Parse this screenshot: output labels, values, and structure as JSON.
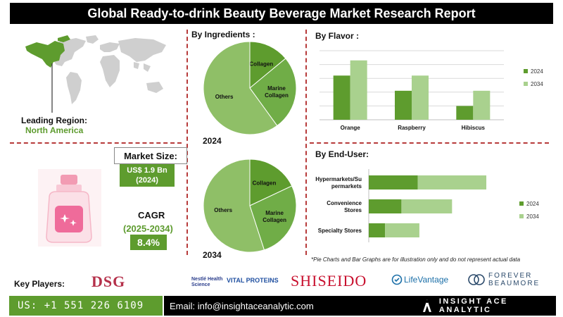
{
  "header": {
    "title": "Global Ready-to-drink Beauty Beverage Market Research Report"
  },
  "region": {
    "label": "Leading Region:",
    "value": "North America"
  },
  "market_size": {
    "label": "Market Size:",
    "value": "US$ 1.9 Bn",
    "year": "(2024)"
  },
  "cagr": {
    "label": "CAGR",
    "years": "(2025-2034)",
    "value": "8.4%"
  },
  "note": "*Pie Charts and Bar Graphs are for illustration only and do not represent actual data",
  "key_players": {
    "label": "Key Players:",
    "logos": [
      "DSG",
      "Nestlé Health Science",
      "VITAL PROTEINS",
      "SHISEIDO",
      "LifeVantage",
      "FOREVER",
      "BEAUMORE"
    ]
  },
  "footer": {
    "phone": "US: +1 551 226 6109",
    "email": "Email: info@insightaceanalytic.com",
    "brand": "INSIGHT ACE ANALYTIC"
  },
  "colors": {
    "dark_green": "#5e9c2e",
    "light_green": "#a9d18e",
    "mid_green": "#70ad47",
    "pie_light": "#8fbf67",
    "accent_red": "#b73a3a"
  },
  "chart_data": [
    {
      "type": "pie",
      "title": "By Ingredients :",
      "year": "2024",
      "slices": [
        {
          "label": "Collagen",
          "value": 14
        },
        {
          "label": "Marine Collagen",
          "value": 26
        },
        {
          "label": "Others",
          "value": 60
        }
      ]
    },
    {
      "type": "pie",
      "year": "2034",
      "slices": [
        {
          "label": "Collagen",
          "value": 18
        },
        {
          "label": "Marine Collagen",
          "value": 27
        },
        {
          "label": "Others",
          "value": 55
        }
      ]
    },
    {
      "type": "bar",
      "title": "By  Flavor :",
      "categories": [
        "Orange",
        "Raspberry",
        "Hibiscus"
      ],
      "series": [
        {
          "name": "2024",
          "values": [
            3.2,
            2.1,
            1.0
          ]
        },
        {
          "name": "2034",
          "values": [
            4.3,
            3.2,
            2.1
          ]
        }
      ],
      "ylim": [
        0,
        5
      ],
      "grid": true,
      "legend": "right"
    },
    {
      "type": "bar",
      "orientation": "horizontal",
      "stacked": true,
      "title": "By End-User:",
      "categories": [
        "Hypermarkets/Supermarkets",
        "Convenience Stores",
        "Specialty Stores"
      ],
      "category_lines": [
        [
          "Hypermarkets/Su",
          "permarkets"
        ],
        [
          "Convenience",
          "Stores"
        ],
        [
          "Specialty Stores"
        ]
      ],
      "series": [
        {
          "name": "2024",
          "values": [
            3.0,
            2.0,
            1.0
          ]
        },
        {
          "name": "2034",
          "values": [
            4.2,
            3.1,
            2.1
          ]
        }
      ],
      "xlim": [
        0,
        10
      ],
      "legend": "right"
    }
  ]
}
